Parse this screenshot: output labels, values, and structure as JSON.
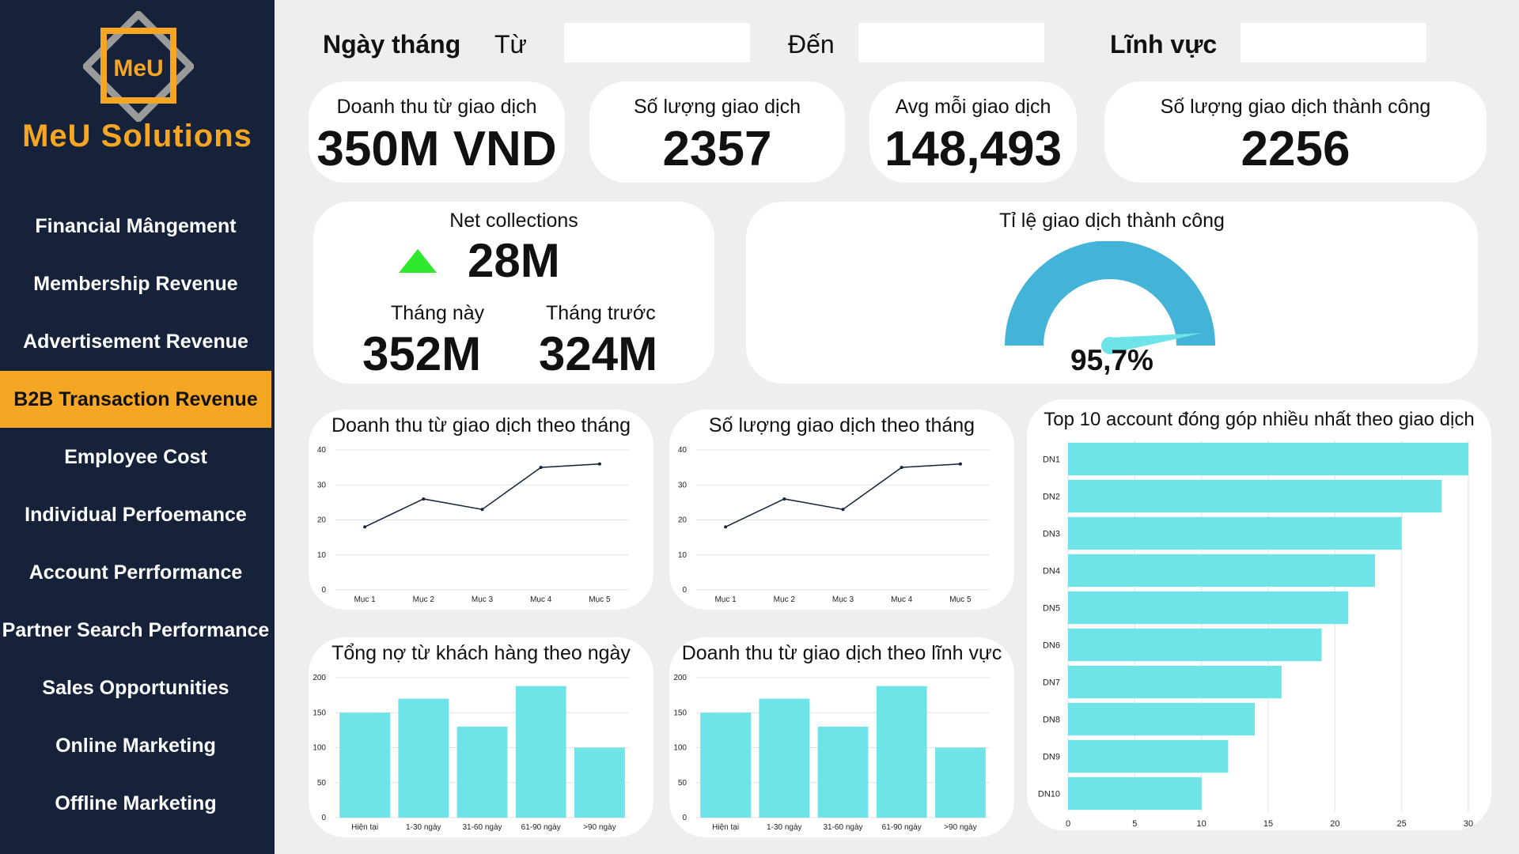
{
  "brand": {
    "name": "MeU Solutions",
    "logo_text": "MeU"
  },
  "sidebar": {
    "items": [
      {
        "label": "Financial Mângement",
        "active": false
      },
      {
        "label": "Membership Revenue",
        "active": false
      },
      {
        "label": "Advertisement Revenue",
        "active": false
      },
      {
        "label": "B2B Transaction Revenue",
        "active": true
      },
      {
        "label": "Employee Cost",
        "active": false
      },
      {
        "label": "Individual Perfoemance",
        "active": false
      },
      {
        "label": "Account Perrformance",
        "active": false
      },
      {
        "label": "Partner Search Performance",
        "active": false
      },
      {
        "label": "Sales Opportunities",
        "active": false
      },
      {
        "label": "Online Marketing",
        "active": false
      },
      {
        "label": "Offline Marketing",
        "active": false
      }
    ]
  },
  "filters": {
    "date_label": "Ngày tháng",
    "from_label": "Từ",
    "from_value": "",
    "to_label": "Đến",
    "to_value": "",
    "field_label": "Lĩnh vực",
    "field_value": ""
  },
  "kpis": {
    "revenue": {
      "title": "Doanh thu từ giao dịch",
      "value": "350M VND"
    },
    "count": {
      "title": "Số lượng giao dịch",
      "value": "2357"
    },
    "avg": {
      "title": "Avg mỗi giao dịch",
      "value": "148,493"
    },
    "success": {
      "title": "Số lượng giao dịch thành công",
      "value": "2256"
    }
  },
  "net": {
    "title": "Net collections",
    "value": "28M",
    "trend": "up",
    "this_month_label": "Tháng này",
    "this_month_value": "352M",
    "last_month_label": "Tháng trước",
    "last_month_value": "324M"
  },
  "gauge": {
    "title": "Tỉ lệ giao dịch thành công",
    "value_text": "95,7%",
    "value": 95.7
  },
  "colors": {
    "sidebar": "#15223a",
    "accent": "#f5a623",
    "bar": "#6ee3e8",
    "gauge": "#43b3d8",
    "trend_up": "#2ee82e"
  },
  "chart_data": [
    {
      "type": "line",
      "title": "Doanh thu từ giao dịch theo tháng",
      "categories": [
        "Mục 1",
        "Mục 2",
        "Mục 3",
        "Mục 4",
        "Mục 5"
      ],
      "values": [
        18,
        26,
        23,
        35,
        36
      ],
      "ylim": [
        0,
        40
      ],
      "yticks": [
        0,
        10,
        20,
        30,
        40
      ],
      "grid": true
    },
    {
      "type": "line",
      "title": "Số lượng giao dịch theo tháng",
      "categories": [
        "Mục 1",
        "Mục 2",
        "Mục 3",
        "Mục 4",
        "Mục 5"
      ],
      "values": [
        18,
        26,
        23,
        35,
        36
      ],
      "ylim": [
        0,
        40
      ],
      "yticks": [
        0,
        10,
        20,
        30,
        40
      ],
      "grid": true
    },
    {
      "type": "bar",
      "title": "Tổng nợ từ khách hàng theo ngày",
      "categories": [
        "Hiện tại",
        "1-30 ngày",
        "31-60 ngày",
        "61-90 ngày",
        ">90 ngày"
      ],
      "values": [
        150,
        170,
        130,
        188,
        100
      ],
      "ylim": [
        0,
        200
      ],
      "yticks": [
        0,
        50,
        100,
        150,
        200
      ],
      "grid": true
    },
    {
      "type": "bar",
      "title": "Doanh thu từ giao dịch theo lĩnh vực",
      "categories": [
        "Hiện tại",
        "1-30 ngày",
        "31-60 ngày",
        "61-90 ngày",
        ">90 ngày"
      ],
      "values": [
        150,
        170,
        130,
        188,
        100
      ],
      "ylim": [
        0,
        200
      ],
      "yticks": [
        0,
        50,
        100,
        150,
        200
      ],
      "grid": true
    },
    {
      "type": "bar",
      "orientation": "horizontal",
      "title": "Top 10 account đóng góp nhiều nhất theo giao dịch",
      "categories": [
        "DN1",
        "DN2",
        "DN3",
        "DN4",
        "DN5",
        "DN6",
        "DN7",
        "DN8",
        "DN9",
        "DN10"
      ],
      "values": [
        30,
        28,
        25,
        23,
        21,
        19,
        16,
        14,
        12,
        10
      ],
      "xlim": [
        0,
        30
      ],
      "xticks": [
        0,
        5,
        10,
        15,
        20,
        25,
        30
      ],
      "grid": true
    }
  ]
}
